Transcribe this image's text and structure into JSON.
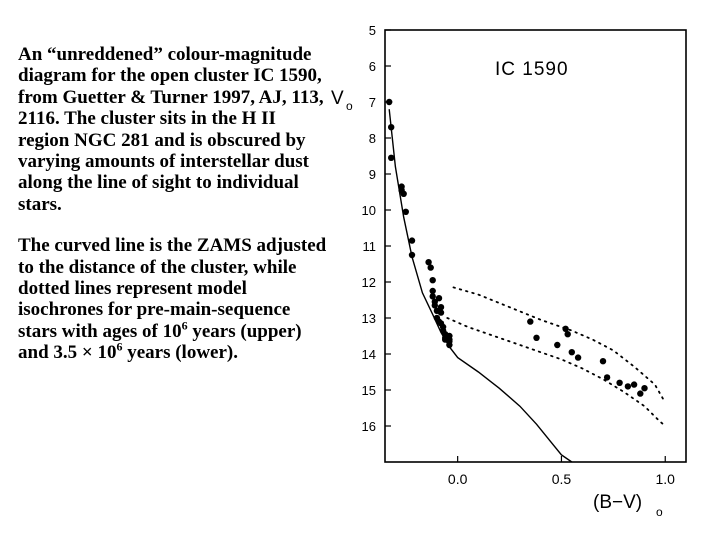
{
  "caption": {
    "para1": "An “unreddened” colour-magnitude diagram for the open cluster IC 1590, from Guetter & Turner 1997, AJ, 113, 2116. The cluster sits in the H II region NGC 281 and is obscured by varying amounts of interstellar dust along the line of sight to individual stars.",
    "para2_a": "The curved line is the ZAMS adjusted to the distance of the cluster, while dotted lines represent model isochrones for pre-main-sequence stars with ages of 10",
    "para2_b": " years (upper) and 3.5 × 10",
    "para2_c": " years (lower).",
    "exponent": "6"
  },
  "chart_data": {
    "type": "scatter",
    "title": "IC 1590",
    "xlabel_main": "(B−V)",
    "xlabel_sub": "o",
    "ylabel_main": "V",
    "ylabel_sub": "o",
    "xlim": [
      -0.35,
      1.1
    ],
    "ylim": [
      17.0,
      5.0
    ],
    "y_inverted": true,
    "x_ticks": [
      0.0,
      0.5,
      1.0
    ],
    "x_tick_labels": [
      "0.0",
      "0.5",
      "1.0"
    ],
    "y_ticks": [
      5,
      6,
      7,
      8,
      9,
      10,
      11,
      12,
      13,
      14,
      15,
      16
    ],
    "y_tick_labels": [
      "5",
      "6",
      "7",
      "8",
      "9",
      "10",
      "11",
      "12",
      "13",
      "14",
      "15",
      "16"
    ],
    "grid": false,
    "zams_curve": {
      "x": [
        -0.33,
        -0.3,
        -0.26,
        -0.22,
        -0.17,
        -0.12,
        -0.08,
        -0.04,
        0.0,
        0.1,
        0.2,
        0.3,
        0.38,
        0.45,
        0.5,
        0.55
      ],
      "y": [
        7.2,
        8.8,
        10.2,
        11.3,
        12.3,
        12.9,
        13.4,
        13.8,
        14.1,
        14.5,
        14.95,
        15.45,
        15.95,
        16.45,
        16.8,
        17.0
      ]
    },
    "isochrone_upper": {
      "x": [
        -0.02,
        0.1,
        0.25,
        0.4,
        0.55,
        0.65,
        0.75,
        0.85,
        0.95,
        1.0
      ],
      "y": [
        12.15,
        12.35,
        12.7,
        13.05,
        13.35,
        13.6,
        13.9,
        14.35,
        14.85,
        15.35
      ]
    },
    "isochrone_lower": {
      "x": [
        -0.05,
        0.05,
        0.2,
        0.35,
        0.5,
        0.6,
        0.7,
        0.8,
        0.9,
        0.97,
        1.0
      ],
      "y": [
        13.0,
        13.25,
        13.55,
        13.85,
        14.15,
        14.4,
        14.7,
        15.05,
        15.45,
        15.85,
        16.0
      ]
    },
    "stars": {
      "x": [
        -0.33,
        -0.32,
        -0.32,
        -0.27,
        -0.27,
        -0.26,
        -0.25,
        -0.22,
        -0.22,
        -0.14,
        -0.13,
        -0.12,
        -0.12,
        -0.12,
        -0.11,
        -0.11,
        -0.1,
        -0.1,
        -0.09,
        -0.09,
        -0.08,
        -0.08,
        -0.08,
        -0.07,
        -0.07,
        -0.06,
        -0.06,
        -0.06,
        -0.04,
        -0.04,
        -0.04,
        -0.04,
        0.35,
        0.38,
        0.48,
        0.52,
        0.53,
        0.55,
        0.58,
        0.7,
        0.72,
        0.78,
        0.82,
        0.85,
        0.88,
        0.9
      ],
      "y": [
        7.0,
        7.7,
        8.55,
        9.35,
        9.45,
        9.55,
        10.05,
        10.85,
        11.25,
        11.45,
        11.6,
        11.95,
        12.25,
        12.4,
        12.55,
        12.65,
        12.8,
        13.0,
        13.1,
        12.45,
        12.7,
        12.85,
        13.15,
        13.25,
        13.35,
        13.45,
        13.55,
        13.6,
        13.65,
        13.5,
        13.6,
        13.75,
        13.1,
        13.55,
        13.75,
        13.3,
        13.45,
        13.95,
        14.1,
        14.2,
        14.65,
        14.8,
        14.9,
        14.85,
        15.1,
        14.95
      ]
    }
  }
}
